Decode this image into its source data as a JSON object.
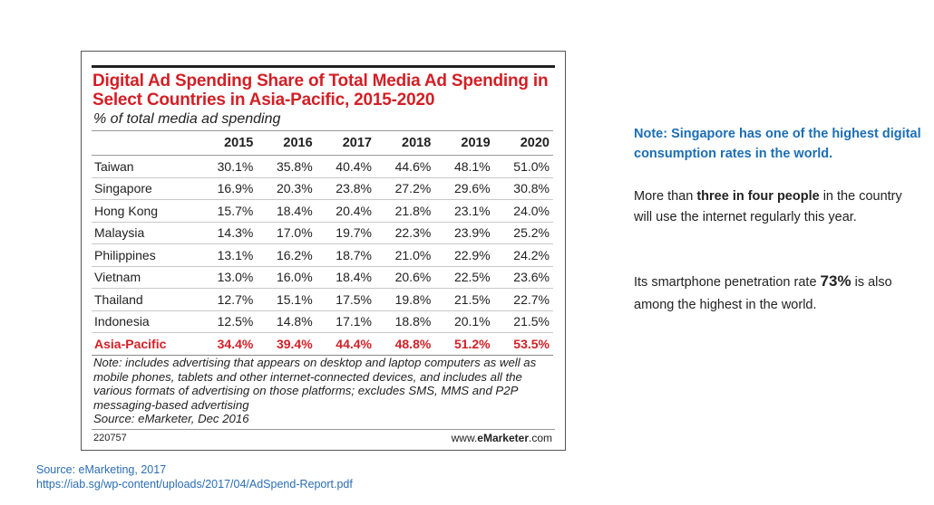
{
  "chart": {
    "title": "Digital Ad Spending Share of Total Media Ad Spending in Select Countries in Asia-Pacific, 2015-2020",
    "subtitle": "% of total media ad spending",
    "note": "Note: includes advertising that appears on desktop and laptop computers as well as mobile phones, tablets and other internet-connected devices, and includes all the various formats of advertising on those platforms; excludes SMS, MMS and P2P messaging-based advertising",
    "source": "Source: eMarketer, Dec 2016",
    "id": "220757",
    "brand_prefix": "www.",
    "brand_name": "eMarketer",
    "brand_suffix": ".com"
  },
  "chart_data": {
    "type": "table",
    "columns": [
      "2015",
      "2016",
      "2017",
      "2018",
      "2019",
      "2020"
    ],
    "rows": [
      {
        "name": "Taiwan",
        "values": [
          "30.1%",
          "35.8%",
          "40.4%",
          "44.6%",
          "48.1%",
          "51.0%"
        ]
      },
      {
        "name": "Singapore",
        "values": [
          "16.9%",
          "20.3%",
          "23.8%",
          "27.2%",
          "29.6%",
          "30.8%"
        ]
      },
      {
        "name": "Hong Kong",
        "values": [
          "15.7%",
          "18.4%",
          "20.4%",
          "21.8%",
          "23.1%",
          "24.0%"
        ]
      },
      {
        "name": "Malaysia",
        "values": [
          "14.3%",
          "17.0%",
          "19.7%",
          "22.3%",
          "23.9%",
          "25.2%"
        ]
      },
      {
        "name": "Philippines",
        "values": [
          "13.1%",
          "16.2%",
          "18.7%",
          "21.0%",
          "22.9%",
          "24.2%"
        ]
      },
      {
        "name": "Vietnam",
        "values": [
          "13.0%",
          "16.0%",
          "18.4%",
          "20.6%",
          "22.5%",
          "23.6%"
        ]
      },
      {
        "name": "Thailand",
        "values": [
          "12.7%",
          "15.1%",
          "17.5%",
          "19.8%",
          "21.5%",
          "22.7%"
        ]
      },
      {
        "name": "Indonesia",
        "values": [
          "12.5%",
          "14.8%",
          "17.1%",
          "18.8%",
          "20.1%",
          "21.5%"
        ]
      }
    ],
    "total": {
      "name": "Asia-Pacific",
      "values": [
        "34.4%",
        "39.4%",
        "44.4%",
        "48.8%",
        "51.2%",
        "53.5%"
      ]
    },
    "highlight_color": "#d31f26"
  },
  "side": {
    "note": "Note: Singapore has one of the highest digital consumption rates in the world.",
    "p1_a": "More than ",
    "p1_b": "three in four people",
    "p1_c": " in the country will use the internet regularly this year.",
    "p2_a": "Its smartphone penetration rate ",
    "p2_b": "73%",
    "p2_c": " is also among the highest in the world.",
    "note_color": "#1b6eb5"
  },
  "source": {
    "line1": "Source: eMarketing, 2017",
    "line2": "https://iab.sg/wp-content/uploads/2017/04/AdSpend-Report.pdf"
  }
}
